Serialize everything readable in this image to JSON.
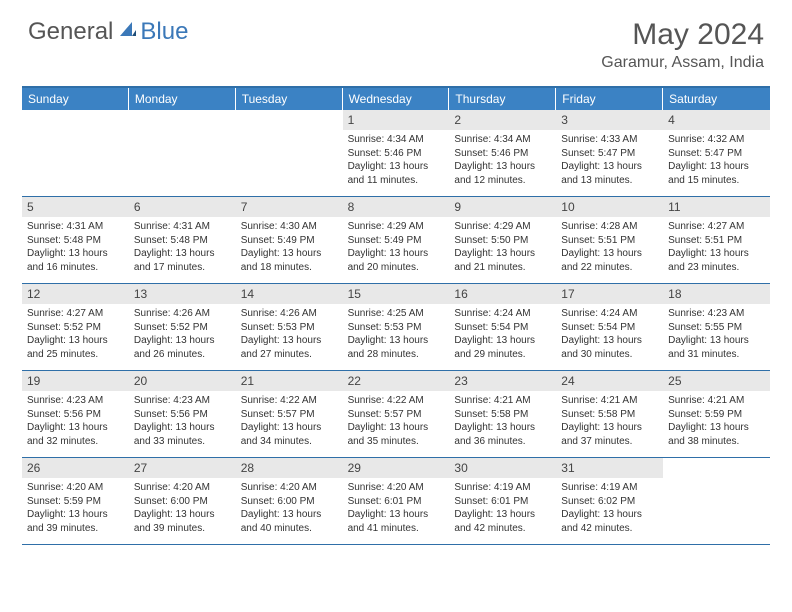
{
  "logo": {
    "general": "General",
    "blue": "Blue"
  },
  "title": "May 2024",
  "location": "Garamur, Assam, India",
  "colors": {
    "header_bg": "#3b82c4",
    "header_border": "#2f6fa8",
    "daynum_bg": "#e8e8e8",
    "text": "#333333",
    "logo_gray": "#555555",
    "logo_blue": "#3b78b8"
  },
  "dayHeaders": [
    "Sunday",
    "Monday",
    "Tuesday",
    "Wednesday",
    "Thursday",
    "Friday",
    "Saturday"
  ],
  "weeks": [
    [
      {
        "empty": true
      },
      {
        "empty": true
      },
      {
        "empty": true
      },
      {
        "num": "1",
        "sunrise": "4:34 AM",
        "sunset": "5:46 PM",
        "daylight": "13 hours and 11 minutes."
      },
      {
        "num": "2",
        "sunrise": "4:34 AM",
        "sunset": "5:46 PM",
        "daylight": "13 hours and 12 minutes."
      },
      {
        "num": "3",
        "sunrise": "4:33 AM",
        "sunset": "5:47 PM",
        "daylight": "13 hours and 13 minutes."
      },
      {
        "num": "4",
        "sunrise": "4:32 AM",
        "sunset": "5:47 PM",
        "daylight": "13 hours and 15 minutes."
      }
    ],
    [
      {
        "num": "5",
        "sunrise": "4:31 AM",
        "sunset": "5:48 PM",
        "daylight": "13 hours and 16 minutes."
      },
      {
        "num": "6",
        "sunrise": "4:31 AM",
        "sunset": "5:48 PM",
        "daylight": "13 hours and 17 minutes."
      },
      {
        "num": "7",
        "sunrise": "4:30 AM",
        "sunset": "5:49 PM",
        "daylight": "13 hours and 18 minutes."
      },
      {
        "num": "8",
        "sunrise": "4:29 AM",
        "sunset": "5:49 PM",
        "daylight": "13 hours and 20 minutes."
      },
      {
        "num": "9",
        "sunrise": "4:29 AM",
        "sunset": "5:50 PM",
        "daylight": "13 hours and 21 minutes."
      },
      {
        "num": "10",
        "sunrise": "4:28 AM",
        "sunset": "5:51 PM",
        "daylight": "13 hours and 22 minutes."
      },
      {
        "num": "11",
        "sunrise": "4:27 AM",
        "sunset": "5:51 PM",
        "daylight": "13 hours and 23 minutes."
      }
    ],
    [
      {
        "num": "12",
        "sunrise": "4:27 AM",
        "sunset": "5:52 PM",
        "daylight": "13 hours and 25 minutes."
      },
      {
        "num": "13",
        "sunrise": "4:26 AM",
        "sunset": "5:52 PM",
        "daylight": "13 hours and 26 minutes."
      },
      {
        "num": "14",
        "sunrise": "4:26 AM",
        "sunset": "5:53 PM",
        "daylight": "13 hours and 27 minutes."
      },
      {
        "num": "15",
        "sunrise": "4:25 AM",
        "sunset": "5:53 PM",
        "daylight": "13 hours and 28 minutes."
      },
      {
        "num": "16",
        "sunrise": "4:24 AM",
        "sunset": "5:54 PM",
        "daylight": "13 hours and 29 minutes."
      },
      {
        "num": "17",
        "sunrise": "4:24 AM",
        "sunset": "5:54 PM",
        "daylight": "13 hours and 30 minutes."
      },
      {
        "num": "18",
        "sunrise": "4:23 AM",
        "sunset": "5:55 PM",
        "daylight": "13 hours and 31 minutes."
      }
    ],
    [
      {
        "num": "19",
        "sunrise": "4:23 AM",
        "sunset": "5:56 PM",
        "daylight": "13 hours and 32 minutes."
      },
      {
        "num": "20",
        "sunrise": "4:23 AM",
        "sunset": "5:56 PM",
        "daylight": "13 hours and 33 minutes."
      },
      {
        "num": "21",
        "sunrise": "4:22 AM",
        "sunset": "5:57 PM",
        "daylight": "13 hours and 34 minutes."
      },
      {
        "num": "22",
        "sunrise": "4:22 AM",
        "sunset": "5:57 PM",
        "daylight": "13 hours and 35 minutes."
      },
      {
        "num": "23",
        "sunrise": "4:21 AM",
        "sunset": "5:58 PM",
        "daylight": "13 hours and 36 minutes."
      },
      {
        "num": "24",
        "sunrise": "4:21 AM",
        "sunset": "5:58 PM",
        "daylight": "13 hours and 37 minutes."
      },
      {
        "num": "25",
        "sunrise": "4:21 AM",
        "sunset": "5:59 PM",
        "daylight": "13 hours and 38 minutes."
      }
    ],
    [
      {
        "num": "26",
        "sunrise": "4:20 AM",
        "sunset": "5:59 PM",
        "daylight": "13 hours and 39 minutes."
      },
      {
        "num": "27",
        "sunrise": "4:20 AM",
        "sunset": "6:00 PM",
        "daylight": "13 hours and 39 minutes."
      },
      {
        "num": "28",
        "sunrise": "4:20 AM",
        "sunset": "6:00 PM",
        "daylight": "13 hours and 40 minutes."
      },
      {
        "num": "29",
        "sunrise": "4:20 AM",
        "sunset": "6:01 PM",
        "daylight": "13 hours and 41 minutes."
      },
      {
        "num": "30",
        "sunrise": "4:19 AM",
        "sunset": "6:01 PM",
        "daylight": "13 hours and 42 minutes."
      },
      {
        "num": "31",
        "sunrise": "4:19 AM",
        "sunset": "6:02 PM",
        "daylight": "13 hours and 42 minutes."
      },
      {
        "empty": true
      }
    ]
  ],
  "labels": {
    "sunrise": "Sunrise:",
    "sunset": "Sunset:",
    "daylight": "Daylight:"
  }
}
